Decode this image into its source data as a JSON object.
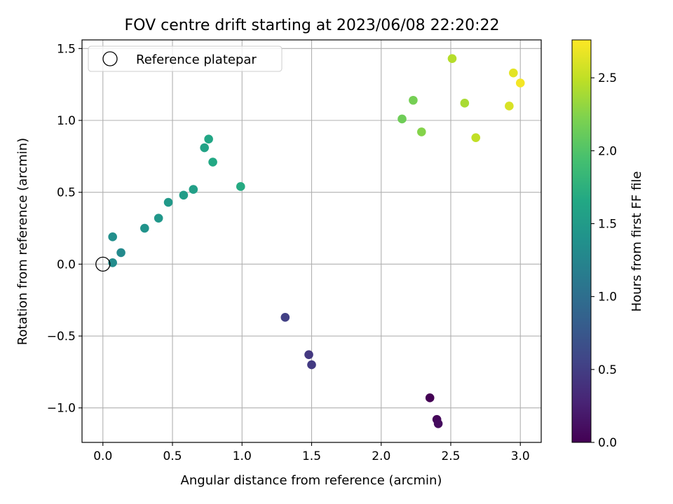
{
  "chart_data": {
    "type": "scatter",
    "title": "FOV centre drift starting at 2023/06/08 22:20:22",
    "xlabel": "Angular distance from reference (arcmin)",
    "ylabel": "Rotation from reference (arcmin)",
    "xlim": [
      -0.15,
      3.15
    ],
    "ylim": [
      -1.24,
      1.56
    ],
    "xticks": [
      0.0,
      0.5,
      1.0,
      1.5,
      2.0,
      2.5,
      3.0
    ],
    "xtick_labels": [
      "0.0",
      "0.5",
      "1.0",
      "1.5",
      "2.0",
      "2.5",
      "3.0"
    ],
    "yticks": [
      -1.0,
      -0.5,
      0.0,
      0.5,
      1.0,
      1.5
    ],
    "ytick_labels": [
      "−1.0",
      "−0.5",
      "0.0",
      "0.5",
      "1.0",
      "1.5"
    ],
    "grid": true,
    "legend": {
      "position": "top-left",
      "entries": [
        "Reference platepar"
      ]
    },
    "reference_point": {
      "x": 0.0,
      "y": 0.0
    },
    "colorbar": {
      "label": "Hours from first FF file",
      "colormap": "viridis",
      "range": [
        0.0,
        2.76
      ],
      "ticks": [
        0.0,
        0.5,
        1.0,
        1.5,
        2.0,
        2.5
      ],
      "tick_labels": [
        "0.0",
        "0.5",
        "1.0",
        "1.5",
        "2.0",
        "2.5"
      ]
    },
    "points": [
      {
        "x": 2.35,
        "y": -0.93,
        "c": 0.0
      },
      {
        "x": 2.4,
        "y": -1.08,
        "c": 0.05
      },
      {
        "x": 2.41,
        "y": -1.11,
        "c": 0.08
      },
      {
        "x": 1.48,
        "y": -0.63,
        "c": 0.45
      },
      {
        "x": 1.5,
        "y": -0.7,
        "c": 0.47
      },
      {
        "x": 1.31,
        "y": -0.37,
        "c": 0.52
      },
      {
        "x": 0.07,
        "y": 0.01,
        "c": 1.33
      },
      {
        "x": 0.13,
        "y": 0.08,
        "c": 1.3
      },
      {
        "x": 0.07,
        "y": 0.19,
        "c": 1.36
      },
      {
        "x": 0.3,
        "y": 0.25,
        "c": 1.4
      },
      {
        "x": 0.4,
        "y": 0.32,
        "c": 1.45
      },
      {
        "x": 0.47,
        "y": 0.43,
        "c": 1.48
      },
      {
        "x": 0.58,
        "y": 0.48,
        "c": 1.52
      },
      {
        "x": 0.65,
        "y": 0.52,
        "c": 1.55
      },
      {
        "x": 0.73,
        "y": 0.81,
        "c": 1.6
      },
      {
        "x": 0.76,
        "y": 0.87,
        "c": 1.63
      },
      {
        "x": 0.79,
        "y": 0.71,
        "c": 1.65
      },
      {
        "x": 0.99,
        "y": 0.54,
        "c": 1.68
      },
      {
        "x": 2.15,
        "y": 1.01,
        "c": 2.15
      },
      {
        "x": 2.23,
        "y": 1.14,
        "c": 2.18
      },
      {
        "x": 2.29,
        "y": 0.92,
        "c": 2.25
      },
      {
        "x": 2.51,
        "y": 1.43,
        "c": 2.45
      },
      {
        "x": 2.6,
        "y": 1.12,
        "c": 2.4
      },
      {
        "x": 2.68,
        "y": 0.88,
        "c": 2.5
      },
      {
        "x": 2.92,
        "y": 1.1,
        "c": 2.6
      },
      {
        "x": 2.95,
        "y": 1.33,
        "c": 2.65
      },
      {
        "x": 3.0,
        "y": 1.26,
        "c": 2.72
      }
    ]
  }
}
